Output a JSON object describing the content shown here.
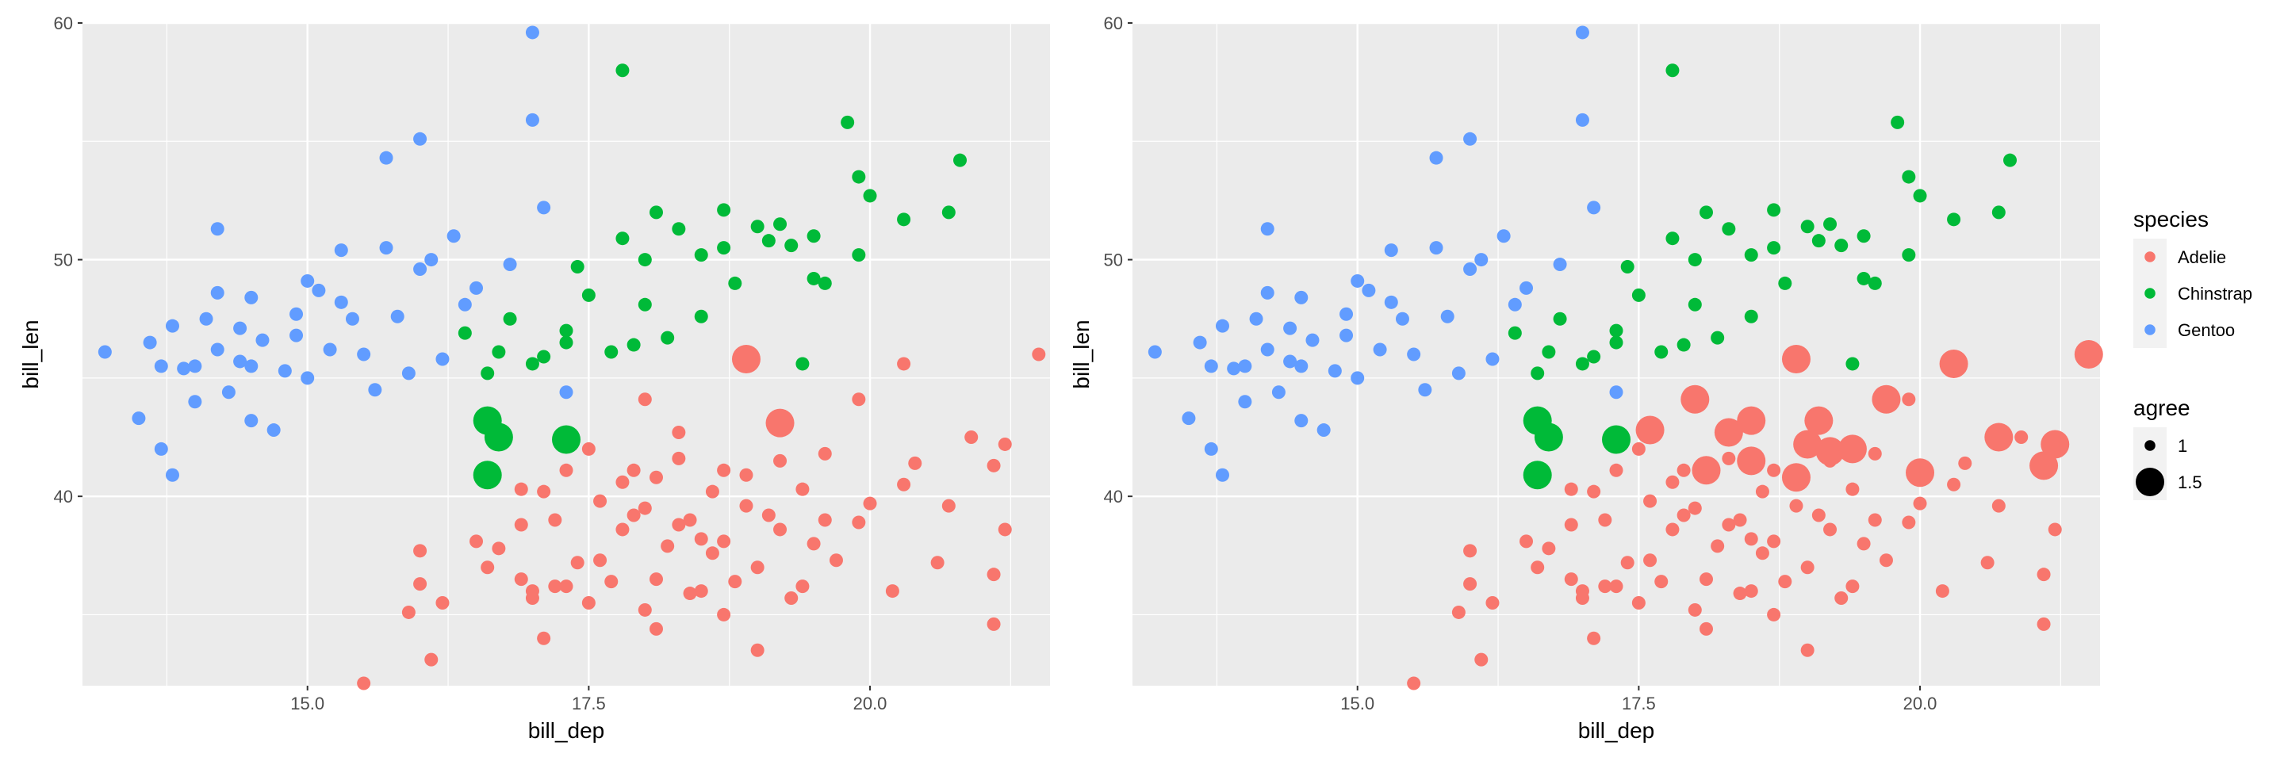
{
  "chart_data": [
    {
      "type": "scatter",
      "title": "",
      "xlabel": "bill_dep",
      "ylabel": "bill_len",
      "xlim": [
        13.0,
        21.6
      ],
      "ylim": [
        32.0,
        60.0
      ],
      "x_ticks": [
        15.0,
        17.5,
        20.0
      ],
      "x_tick_labels": [
        "15.0",
        "17.5",
        "20.0"
      ],
      "y_ticks": [
        40,
        50,
        60
      ],
      "y_tick_labels": [
        "40",
        "50",
        "60"
      ],
      "grid": true,
      "color_by": "species",
      "size_by": "agree",
      "series": [
        {
          "name": "Gentoo",
          "points": [
            [
              13.2,
              46.1
            ],
            [
              13.5,
              43.3
            ],
            [
              13.6,
              46.5
            ],
            [
              13.7,
              42.0
            ],
            [
              13.7,
              45.5
            ],
            [
              13.8,
              40.9
            ],
            [
              13.8,
              47.2
            ],
            [
              13.9,
              45.4
            ],
            [
              14.0,
              44.0
            ],
            [
              14.0,
              45.5
            ],
            [
              14.1,
              47.5
            ],
            [
              14.2,
              48.6
            ],
            [
              14.2,
              46.2
            ],
            [
              14.3,
              44.4
            ],
            [
              14.4,
              45.7
            ],
            [
              14.4,
              47.1
            ],
            [
              14.5,
              43.2
            ],
            [
              14.5,
              45.5
            ],
            [
              14.5,
              48.4
            ],
            [
              14.6,
              46.6
            ],
            [
              14.7,
              42.8
            ],
            [
              14.8,
              45.3
            ],
            [
              14.9,
              46.8
            ],
            [
              15.0,
              49.1
            ],
            [
              15.0,
              45.0
            ],
            [
              15.1,
              48.7
            ],
            [
              15.2,
              46.2
            ],
            [
              15.3,
              48.2
            ],
            [
              15.4,
              47.5
            ],
            [
              15.5,
              46.0
            ],
            [
              15.6,
              44.5
            ],
            [
              15.7,
              50.5
            ],
            [
              15.8,
              47.6
            ],
            [
              15.9,
              45.2
            ],
            [
              16.0,
              49.6
            ],
            [
              16.1,
              50.0
            ],
            [
              16.2,
              45.8
            ],
            [
              16.3,
              51.0
            ],
            [
              16.4,
              48.1
            ],
            [
              16.5,
              48.8
            ],
            [
              16.0,
              55.1
            ],
            [
              15.7,
              54.3
            ],
            [
              17.0,
              59.6
            ],
            [
              17.0,
              55.9
            ],
            [
              17.1,
              52.2
            ],
            [
              16.8,
              49.8
            ],
            [
              17.3,
              44.4
            ],
            [
              14.2,
              51.3
            ],
            [
              14.9,
              47.7
            ],
            [
              15.3,
              50.4
            ]
          ]
        },
        {
          "name": "Chinstrap",
          "points": [
            [
              16.4,
              46.9
            ],
            [
              16.6,
              45.2
            ],
            [
              16.7,
              46.1
            ],
            [
              16.8,
              47.5
            ],
            [
              17.0,
              45.6
            ],
            [
              17.1,
              45.9
            ],
            [
              17.3,
              46.5
            ],
            [
              17.3,
              47.0
            ],
            [
              17.4,
              49.7
            ],
            [
              17.5,
              48.5
            ],
            [
              17.7,
              46.1
            ],
            [
              17.8,
              58.0
            ],
            [
              17.8,
              50.9
            ],
            [
              17.9,
              46.4
            ],
            [
              18.0,
              50.0
            ],
            [
              18.1,
              52.0
            ],
            [
              18.2,
              46.7
            ],
            [
              18.3,
              51.3
            ],
            [
              18.5,
              47.6
            ],
            [
              18.5,
              50.2
            ],
            [
              18.7,
              52.1
            ],
            [
              18.7,
              50.5
            ],
            [
              18.8,
              49.0
            ],
            [
              18.9,
              46.0
            ],
            [
              19.0,
              51.4
            ],
            [
              19.1,
              50.8
            ],
            [
              19.2,
              51.5
            ],
            [
              19.3,
              50.6
            ],
            [
              19.4,
              45.6
            ],
            [
              19.5,
              51.0
            ],
            [
              19.5,
              49.2
            ],
            [
              19.6,
              49.0
            ],
            [
              19.8,
              55.8
            ],
            [
              19.9,
              50.2
            ],
            [
              19.9,
              53.5
            ],
            [
              20.0,
              52.7
            ],
            [
              20.3,
              51.7
            ],
            [
              20.7,
              52.0
            ],
            [
              20.8,
              54.2
            ],
            [
              18.0,
              48.1
            ]
          ]
        },
        {
          "name": "Adelie",
          "points": [
            [
              15.5,
              32.1
            ],
            [
              15.9,
              35.1
            ],
            [
              16.1,
              33.1
            ],
            [
              16.2,
              35.5
            ],
            [
              16.0,
              36.3
            ],
            [
              16.0,
              37.7
            ],
            [
              16.6,
              37.0
            ],
            [
              16.5,
              38.1
            ],
            [
              16.7,
              37.8
            ],
            [
              16.9,
              36.5
            ],
            [
              17.0,
              35.7
            ],
            [
              17.1,
              34.0
            ],
            [
              17.2,
              36.2
            ],
            [
              17.3,
              36.2
            ],
            [
              17.4,
              37.2
            ],
            [
              17.5,
              35.5
            ],
            [
              17.6,
              37.3
            ],
            [
              17.7,
              36.4
            ],
            [
              17.8,
              38.6
            ],
            [
              17.9,
              39.2
            ],
            [
              18.0,
              35.2
            ],
            [
              18.0,
              39.5
            ],
            [
              18.1,
              36.5
            ],
            [
              18.2,
              37.9
            ],
            [
              18.3,
              38.8
            ],
            [
              18.4,
              39.0
            ],
            [
              18.5,
              38.2
            ],
            [
              18.6,
              37.6
            ],
            [
              18.7,
              38.1
            ],
            [
              18.8,
              36.4
            ],
            [
              18.9,
              39.6
            ],
            [
              19.0,
              33.5
            ],
            [
              19.0,
              37.0
            ],
            [
              19.1,
              39.2
            ],
            [
              19.2,
              38.6
            ],
            [
              19.3,
              35.7
            ],
            [
              19.4,
              36.2
            ],
            [
              19.5,
              38.0
            ],
            [
              19.6,
              39.0
            ],
            [
              19.7,
              37.3
            ],
            [
              19.9,
              38.9
            ],
            [
              20.0,
              39.7
            ],
            [
              20.2,
              36.0
            ],
            [
              20.6,
              37.2
            ],
            [
              20.7,
              39.6
            ],
            [
              21.1,
              36.7
            ],
            [
              21.1,
              34.6
            ],
            [
              21.2,
              38.6
            ],
            [
              20.3,
              40.5
            ],
            [
              20.4,
              41.4
            ],
            [
              21.1,
              41.3
            ],
            [
              21.2,
              42.2
            ],
            [
              20.9,
              42.5
            ],
            [
              19.9,
              44.1
            ],
            [
              20.3,
              45.6
            ],
            [
              21.5,
              46.0
            ],
            [
              17.8,
              40.6
            ],
            [
              17.9,
              41.1
            ],
            [
              18.1,
              40.8
            ],
            [
              18.3,
              41.6
            ],
            [
              18.6,
              40.2
            ],
            [
              18.7,
              41.1
            ],
            [
              18.9,
              40.9
            ],
            [
              19.2,
              41.5
            ],
            [
              19.4,
              40.3
            ],
            [
              17.1,
              40.2
            ],
            [
              17.3,
              41.1
            ],
            [
              16.9,
              40.3
            ],
            [
              18.0,
              44.1
            ],
            [
              18.3,
              42.7
            ],
            [
              17.5,
              42.0
            ],
            [
              17.6,
              39.8
            ],
            [
              16.9,
              38.8
            ],
            [
              17.2,
              39.0
            ],
            [
              18.5,
              36.0
            ],
            [
              19.6,
              41.8
            ],
            [
              18.4,
              35.9
            ],
            [
              17.0,
              36.0
            ],
            [
              18.7,
              35.0
            ],
            [
              18.1,
              34.4
            ]
          ]
        }
      ],
      "highlighted_points": [
        {
          "species": "Chinstrap",
          "agree": 1.5,
          "x": 16.6,
          "y": 43.2
        },
        {
          "species": "Chinstrap",
          "agree": 1.5,
          "x": 16.7,
          "y": 42.5
        },
        {
          "species": "Chinstrap",
          "agree": 1.5,
          "x": 16.6,
          "y": 40.9
        },
        {
          "species": "Chinstrap",
          "agree": 1.5,
          "x": 17.3,
          "y": 42.4
        },
        {
          "species": "Adelie",
          "agree": 1.5,
          "x": 18.9,
          "y": 45.8
        },
        {
          "species": "Adelie",
          "agree": 1.5,
          "x": 19.2,
          "y": 43.1
        }
      ]
    },
    {
      "type": "scatter",
      "title": "",
      "xlabel": "bill_dep",
      "ylabel": "bill_len",
      "xlim": [
        13.0,
        21.6
      ],
      "ylim": [
        32.0,
        60.0
      ],
      "x_ticks": [
        15.0,
        17.5,
        20.0
      ],
      "x_tick_labels": [
        "15.0",
        "17.5",
        "20.0"
      ],
      "y_ticks": [
        40,
        50,
        60
      ],
      "y_tick_labels": [
        "40",
        "50",
        "60"
      ],
      "grid": true,
      "color_by": "species",
      "size_by": "agree",
      "same_points_as_chart": 0,
      "highlighted_points": [
        {
          "species": "Chinstrap",
          "agree": 1.5,
          "x": 16.6,
          "y": 43.2
        },
        {
          "species": "Chinstrap",
          "agree": 1.5,
          "x": 16.7,
          "y": 42.5
        },
        {
          "species": "Chinstrap",
          "agree": 1.5,
          "x": 16.6,
          "y": 40.9
        },
        {
          "species": "Chinstrap",
          "agree": 1.5,
          "x": 17.3,
          "y": 42.4
        },
        {
          "species": "Adelie",
          "agree": 1.5,
          "x": 18.9,
          "y": 45.8
        },
        {
          "species": "Adelie",
          "agree": 1.5,
          "x": 17.6,
          "y": 42.8
        },
        {
          "species": "Adelie",
          "agree": 1.5,
          "x": 18.0,
          "y": 44.1
        },
        {
          "species": "Adelie",
          "agree": 1.5,
          "x": 18.1,
          "y": 41.1
        },
        {
          "species": "Adelie",
          "agree": 1.5,
          "x": 18.3,
          "y": 42.7
        },
        {
          "species": "Adelie",
          "agree": 1.5,
          "x": 18.5,
          "y": 43.2
        },
        {
          "species": "Adelie",
          "agree": 1.5,
          "x": 18.5,
          "y": 41.5
        },
        {
          "species": "Adelie",
          "agree": 1.5,
          "x": 18.9,
          "y": 40.8
        },
        {
          "species": "Adelie",
          "agree": 1.5,
          "x": 19.0,
          "y": 42.2
        },
        {
          "species": "Adelie",
          "agree": 1.5,
          "x": 19.1,
          "y": 43.2
        },
        {
          "species": "Adelie",
          "agree": 1.5,
          "x": 19.2,
          "y": 41.9
        },
        {
          "species": "Adelie",
          "agree": 1.5,
          "x": 19.4,
          "y": 42.0
        },
        {
          "species": "Adelie",
          "agree": 1.5,
          "x": 19.7,
          "y": 44.1
        },
        {
          "species": "Adelie",
          "agree": 1.5,
          "x": 20.0,
          "y": 41.0
        },
        {
          "species": "Adelie",
          "agree": 1.5,
          "x": 20.3,
          "y": 45.6
        },
        {
          "species": "Adelie",
          "agree": 1.5,
          "x": 20.7,
          "y": 42.5
        },
        {
          "species": "Adelie",
          "agree": 1.5,
          "x": 21.1,
          "y": 41.3
        },
        {
          "species": "Adelie",
          "agree": 1.5,
          "x": 21.2,
          "y": 42.2
        },
        {
          "species": "Adelie",
          "agree": 1.5,
          "x": 21.5,
          "y": 46.0
        }
      ]
    }
  ],
  "legend": {
    "color_title": "species",
    "color_items": [
      {
        "label": "Adelie",
        "color": "#F8766D"
      },
      {
        "label": "Chinstrap",
        "color": "#00BA38"
      },
      {
        "label": "Gentoo",
        "color": "#619CFF"
      }
    ],
    "size_title": "agree",
    "size_items": [
      {
        "label": "1",
        "size": 1
      },
      {
        "label": "1.5",
        "size": 1.5
      }
    ]
  },
  "colors": {
    "panel_bg": "#EBEBEB",
    "grid": "#FFFFFF",
    "Adelie": "#F8766D",
    "Chinstrap": "#00BA38",
    "Gentoo": "#619CFF"
  }
}
